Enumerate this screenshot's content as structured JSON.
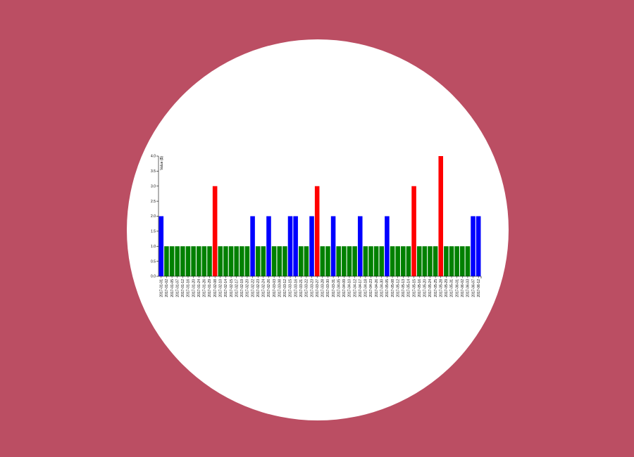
{
  "chart_data": {
    "type": "bar",
    "ylabel": "Value ($)",
    "xlabel": "",
    "ylim": [
      0,
      4
    ],
    "yticks": [
      "0.0",
      "0.5",
      "1.0",
      "1.5",
      "2.0",
      "2.5",
      "3.0",
      "3.5",
      "4.0"
    ],
    "grid": false,
    "legend": "none",
    "categories": [
      "2017-01-01",
      "2017-01-02",
      "2017-01-05",
      "2017-01-07",
      "2017-01-12",
      "2017-01-16",
      "2017-01-20",
      "2017-01-24",
      "2017-01-26",
      "2017-01-29",
      "2017-02-08",
      "2017-02-10",
      "2017-02-14",
      "2017-02-15",
      "2017-02-17",
      "2017-02-19",
      "2017-02-20",
      "2017-02-22",
      "2017-02-23",
      "2017-02-24",
      "2017-02-26",
      "2017-03-03",
      "2017-03-08",
      "2017-03-12",
      "2017-03-15",
      "2017-03-16",
      "2017-03-21",
      "2017-03-22",
      "2017-03-23",
      "2017-03-27",
      "2017-03-28",
      "2017-03-30",
      "2017-03-31",
      "2017-04-05",
      "2017-04-09",
      "2017-04-10",
      "2017-04-12",
      "2017-04-17",
      "2017-04-18",
      "2017-04-23",
      "2017-04-26",
      "2017-04-30",
      "2017-05-05",
      "2017-05-08",
      "2017-05-12",
      "2017-05-13",
      "2017-05-14",
      "2017-05-15",
      "2017-05-16",
      "2017-05-20",
      "2017-05-24",
      "2017-05-25",
      "2017-05-28",
      "2017-05-29",
      "2017-05-31",
      "2017-06-01",
      "2017-06-02",
      "2017-06-03",
      "2017-06-07",
      "2017-06-12"
    ],
    "values": [
      2,
      1,
      1,
      1,
      1,
      1,
      1,
      1,
      1,
      1,
      3,
      1,
      1,
      1,
      1,
      1,
      1,
      2,
      1,
      1,
      2,
      1,
      1,
      1,
      2,
      2,
      1,
      1,
      2,
      3,
      1,
      1,
      2,
      1,
      1,
      1,
      1,
      2,
      1,
      1,
      1,
      1,
      2,
      1,
      1,
      1,
      1,
      3,
      1,
      1,
      1,
      1,
      4,
      1,
      1,
      1,
      1,
      1,
      2,
      2
    ],
    "colors": {
      "1": "#008000",
      "2": "#0000ff",
      "3": "#ff0000",
      "4": "#ff0000"
    }
  }
}
